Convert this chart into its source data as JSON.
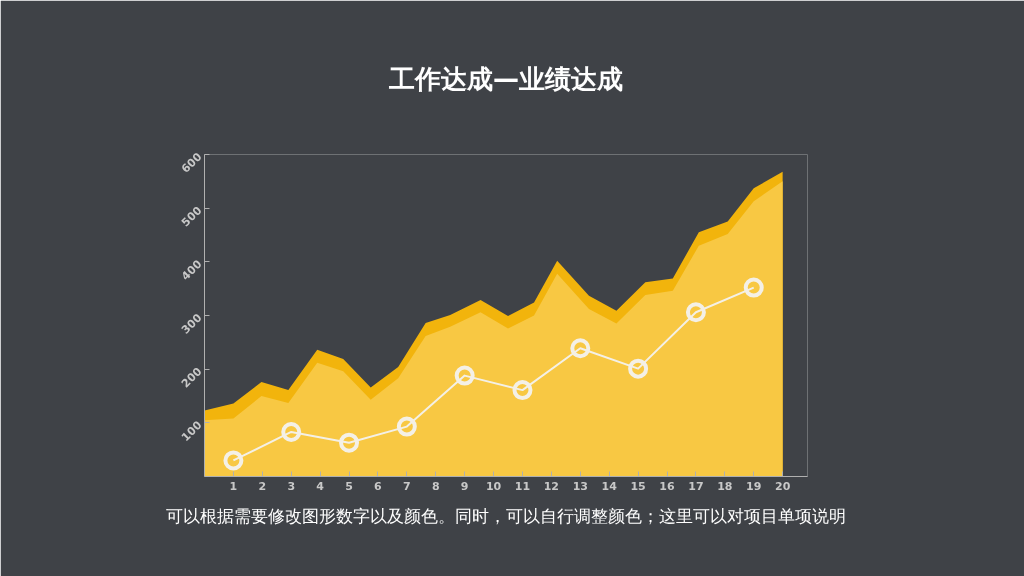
{
  "chart_data": {
    "type": "area",
    "title": "工作达成—业绩达成",
    "annotations": [
      "可以根据需要修改图形数字以及颜色。同时，可以自行调整颜色；这里可以对项目单项说明"
    ],
    "series": [
      {
        "color": "#f2b40c",
        "x": [
          0,
          1,
          1.97,
          2.9,
          3.9,
          4.8,
          5.75,
          6.7,
          7.65,
          8.5,
          9.55,
          10.5,
          11.4,
          12.2,
          13.3,
          14.25,
          15.25,
          16.2,
          17.1,
          18.1,
          19,
          20
        ],
        "values": [
          123,
          136,
          176,
          161,
          236,
          219,
          166,
          204,
          286,
          301,
          329,
          299,
          324,
          402,
          337,
          309,
          362,
          369,
          455,
          475,
          537,
          568
        ]
      },
      {
        "color": "#f8c843",
        "x": [
          0,
          1,
          1.97,
          2.9,
          3.9,
          4.8,
          5.75,
          6.7,
          7.65,
          8.5,
          9.55,
          10.5,
          11.4,
          12.2,
          13.3,
          14.25,
          15.25,
          16.2,
          17.1,
          18.1,
          19,
          20
        ],
        "values": [
          105,
          108,
          150,
          137,
          212,
          196,
          143,
          183,
          262,
          279,
          306,
          276,
          300,
          378,
          312,
          285,
          338,
          346,
          430,
          452,
          513,
          550
        ]
      },
      {
        "type": "line",
        "marker": "circle",
        "color": "#f4f0e6",
        "x": [
          1,
          3,
          5,
          7,
          9,
          11,
          13,
          15,
          17,
          19
        ],
        "values": [
          30,
          83,
          63,
          93,
          188,
          161,
          239,
          201,
          306,
          352
        ]
      }
    ],
    "grid": false,
    "xlim": [
      0,
      20.86
    ],
    "xticks": [
      1,
      2,
      3,
      4,
      5,
      6,
      7,
      8,
      9,
      10,
      11,
      12,
      13,
      14,
      15,
      16,
      17,
      18,
      19,
      20
    ],
    "ylim": [
      0,
      600
    ],
    "yticks": [
      100,
      200,
      300,
      400,
      500,
      600
    ]
  }
}
